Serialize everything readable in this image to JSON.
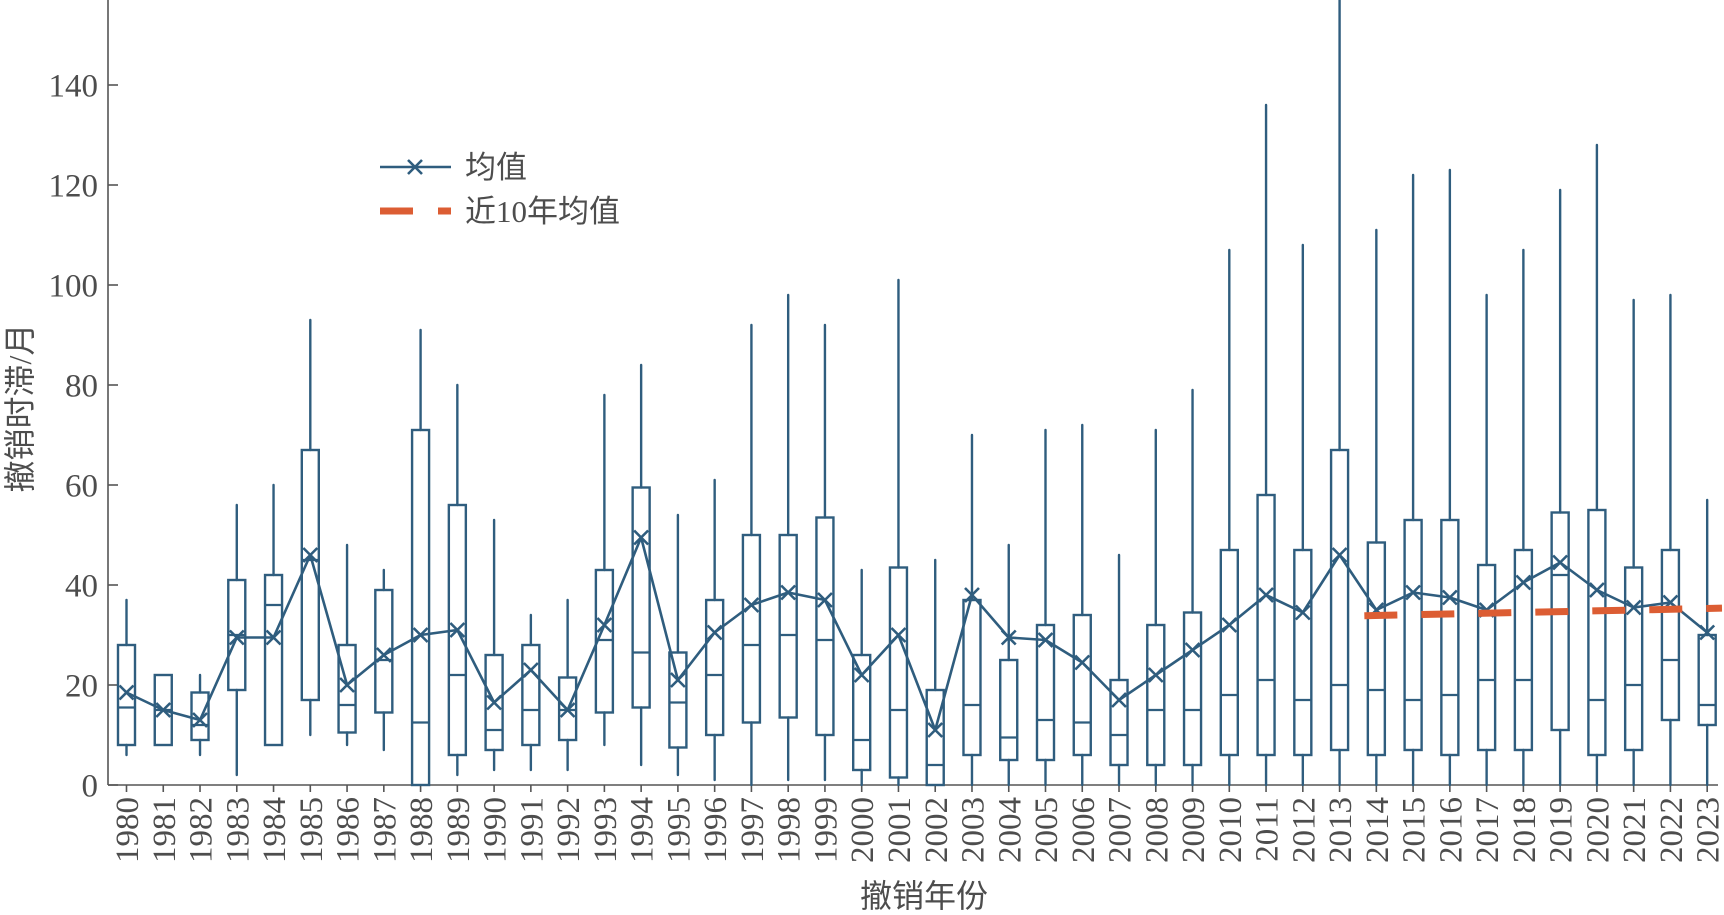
{
  "chart_data": {
    "type": "box",
    "categories": [
      "1980",
      "1981",
      "1982",
      "1983",
      "1984",
      "1985",
      "1986",
      "1987",
      "1988",
      "1989",
      "1990",
      "1991",
      "1992",
      "1993",
      "1994",
      "1995",
      "1996",
      "1997",
      "1998",
      "1999",
      "2000",
      "2001",
      "2002",
      "2003",
      "2004",
      "2005",
      "2006",
      "2007",
      "2008",
      "2009",
      "2010",
      "2011",
      "2012",
      "2013",
      "2014",
      "2015",
      "2016",
      "2017",
      "2018",
      "2019",
      "2020",
      "2021",
      "2022",
      "2023"
    ],
    "box_stats": {
      "whisker_low": [
        6,
        8,
        6,
        2,
        8,
        10,
        8,
        7,
        0,
        2,
        3,
        3,
        3,
        8,
        4,
        2,
        1,
        0,
        1,
        1,
        0,
        0,
        0,
        0,
        0,
        0,
        0,
        0,
        0,
        0,
        0,
        0,
        0,
        0,
        0,
        0,
        0,
        0,
        0,
        0,
        0,
        0,
        0,
        0
      ],
      "q1": [
        8,
        8,
        9,
        19,
        8,
        17,
        10.5,
        14.5,
        0,
        6,
        7,
        8,
        9,
        14.5,
        15.5,
        7.5,
        10,
        12.5,
        13.5,
        10,
        3,
        1.5,
        0,
        6,
        5,
        5,
        6,
        4,
        4,
        4,
        6,
        6,
        6,
        7,
        6,
        7,
        6,
        7,
        7,
        11,
        6,
        7,
        13,
        12
      ],
      "median": [
        15.5,
        15,
        12,
        30,
        36,
        45,
        16,
        25,
        12.5,
        22,
        11,
        15,
        15,
        29,
        26.5,
        16.5,
        22,
        28,
        30,
        29,
        9,
        15,
        4,
        16,
        9.5,
        13,
        12.5,
        10,
        15,
        15,
        18,
        21,
        17,
        20,
        19,
        17,
        18,
        21,
        21,
        42,
        17,
        20,
        25,
        16
      ],
      "q3": [
        28,
        22,
        18.5,
        41,
        42,
        67,
        28,
        39,
        71,
        56,
        26,
        28,
        21.5,
        43,
        59.5,
        26.5,
        37,
        50,
        50,
        53.5,
        26,
        43.5,
        19,
        37,
        25,
        32,
        34,
        21,
        32,
        34.5,
        47,
        58,
        47,
        67,
        48.5,
        53,
        53,
        44,
        47,
        54.5,
        55,
        43.5,
        47,
        30
      ],
      "whisker_high": [
        37,
        22,
        22,
        56,
        60,
        93,
        48,
        43,
        91,
        80,
        53,
        34,
        37,
        78,
        84,
        54,
        61,
        92,
        98,
        92,
        43,
        101,
        45,
        70,
        48,
        71,
        72,
        46,
        71,
        79,
        107,
        136,
        108,
        157,
        111,
        122,
        123,
        98,
        107,
        119,
        128,
        97,
        98,
        57
      ]
    },
    "series": [
      {
        "name": "均值",
        "values": [
          18.5,
          15,
          13,
          29.5,
          29.5,
          46,
          20,
          26,
          30,
          31,
          16.5,
          23,
          15,
          32,
          49.5,
          21,
          30.5,
          36,
          38.5,
          37,
          22,
          30,
          11,
          38,
          29.5,
          29,
          24.5,
          17,
          22,
          27,
          32,
          38,
          34.5,
          46,
          35,
          38.5,
          37.5,
          35,
          40.5,
          44.5,
          39,
          35.5,
          36.5,
          30.5
        ]
      }
    ],
    "reference_line": {
      "name": "近10年均值",
      "x": [
        2014,
        2023
      ],
      "values": [
        33.9,
        35.3
      ]
    },
    "xlabel": "撤销年份",
    "ylabel": "撤销时滞/月",
    "ylim": [
      0,
      157
    ],
    "yticks": [
      0,
      20,
      40,
      60,
      80,
      100,
      120,
      140
    ],
    "grid": false,
    "legend": {
      "position": "top-left"
    },
    "colors": {
      "box": "#2f5d7e",
      "mean": "#2f5d7e",
      "reference": "#dc5d33",
      "axis": "#555555"
    }
  }
}
